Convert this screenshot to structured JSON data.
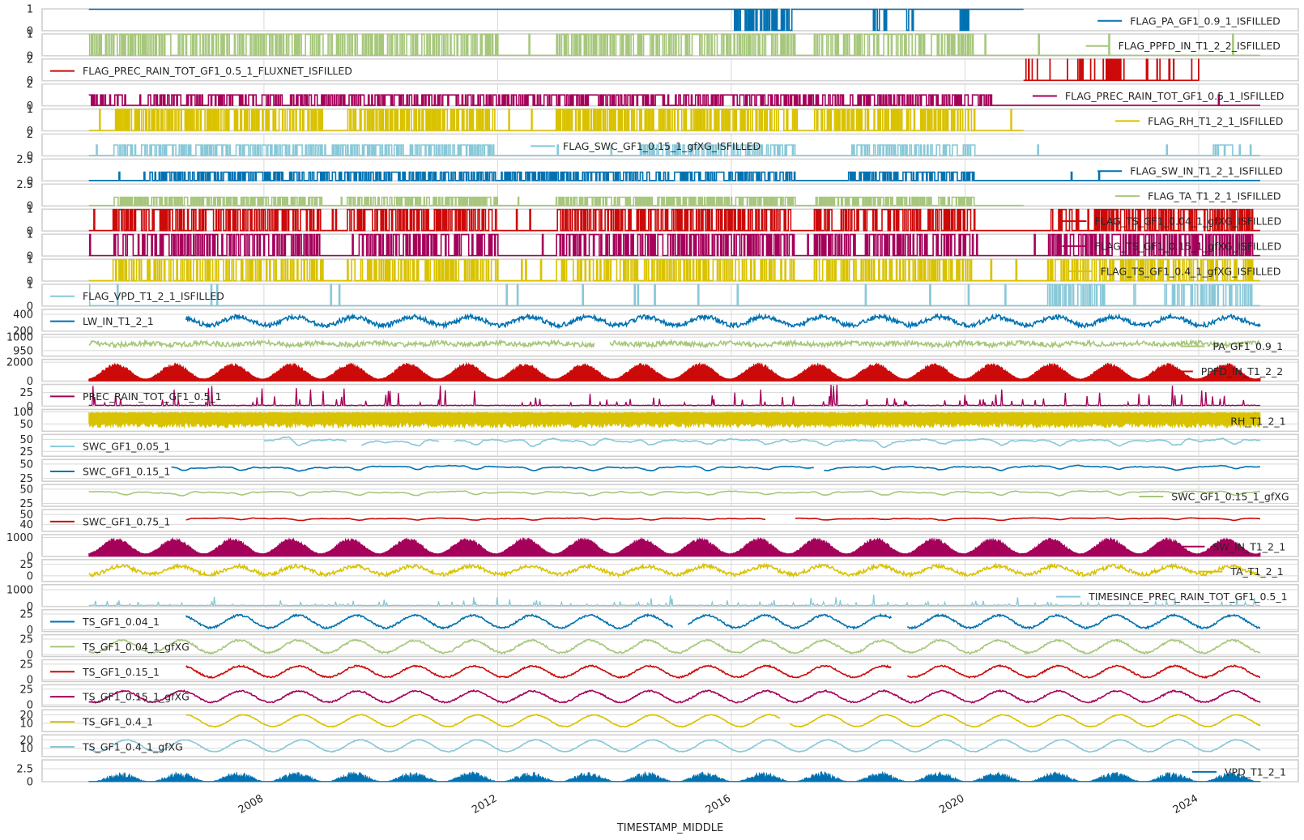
{
  "chart_data": {
    "type": "line",
    "xlabel": "TIMESTAMP_MIDDLE",
    "x_range": [
      "2005-01-01",
      "2025-01-20"
    ],
    "x_axis_limits": [
      "2004-03-15",
      "2025-09-15"
    ],
    "x_ticks": [
      "2008",
      "2012",
      "2016",
      "2020",
      "2024"
    ],
    "x_tick_values": [
      "2008-01-01",
      "2012-01-01",
      "2016-01-01",
      "2020-01-01",
      "2024-01-01"
    ],
    "grid": true,
    "sharex": true,
    "series": [
      {
        "name": "FLAG_PA_GF1_0.9_1_ISFILLED",
        "color": "#0072b2",
        "ylim": [
          0,
          1
        ],
        "yticks": [
          0,
          1
        ],
        "legend": "right",
        "pattern": "flag",
        "base": 1,
        "low": 0,
        "high": 1,
        "start": "2005-01-01",
        "end": "2021-01-01",
        "bursts": [
          [
            "2016-01-15",
            "2017-01-10"
          ],
          [
            "2018-06-01",
            "2018-09-01"
          ],
          [
            "2019-01-01",
            "2019-03-01"
          ],
          [
            "2019-12-01",
            "2020-02-01"
          ]
        ]
      },
      {
        "name": "FLAG_PPFD_IN_T1_2_2_ISFILLED",
        "color": "#a6c77c",
        "ylim": [
          0,
          1
        ],
        "yticks": [
          0,
          1
        ],
        "legend": "right",
        "pattern": "flag",
        "base": 0,
        "low": 0,
        "high": 1,
        "start": "2005-01-01",
        "end": "2025-01-20",
        "bursts": [
          [
            "2005-01-01",
            "2006-06-01"
          ],
          [
            "2006-07-01",
            "2009-01-01"
          ],
          [
            "2009-02-01",
            "2012-01-01"
          ],
          [
            "2013-01-01",
            "2017-02-01"
          ],
          [
            "2017-06-01",
            "2020-03-01"
          ]
        ]
      },
      {
        "name": "FLAG_PREC_RAIN_TOT_GF1_0.5_1_FLUXNET_ISFILLED",
        "color": "#cc0a0a",
        "ylim": [
          0,
          2
        ],
        "yticks": [
          0,
          2
        ],
        "legend": "left",
        "pattern": "flag",
        "base": 0,
        "low": 0,
        "high": 2,
        "start": "2021-01-01",
        "end": "2024-01-01",
        "bursts": [
          [
            "2021-12-15",
            "2022-01-10"
          ],
          [
            "2022-06-01",
            "2022-09-01"
          ]
        ]
      },
      {
        "name": "FLAG_PREC_RAIN_TOT_GF1_0.5_1_ISFILLED",
        "color": "#a5005a",
        "ylim": [
          0,
          2
        ],
        "yticks": [
          0,
          2
        ],
        "legend": "right",
        "pattern": "flag",
        "base": 0,
        "low": 0,
        "high": 1,
        "start": "2005-01-01",
        "end": "2025-01-20",
        "bursts": [
          [
            "2005-01-01",
            "2005-09-01"
          ],
          [
            "2006-01-01",
            "2010-06-01"
          ],
          [
            "2010-06-01",
            "2014-12-01"
          ],
          [
            "2015-01-01",
            "2017-12-01"
          ],
          [
            "2018-01-01",
            "2020-06-01"
          ]
        ]
      },
      {
        "name": "FLAG_RH_T1_2_1_ISFILLED",
        "color": "#d9c200",
        "ylim": [
          0,
          1
        ],
        "yticks": [
          0,
          1
        ],
        "legend": "right",
        "pattern": "flag",
        "base": 0,
        "low": 0,
        "high": 1,
        "start": "2005-01-01",
        "end": "2021-01-01",
        "bursts": [
          [
            "2005-06-01",
            "2009-01-01"
          ],
          [
            "2009-06-01",
            "2012-01-01"
          ],
          [
            "2013-01-01",
            "2017-02-01"
          ],
          [
            "2017-06-01",
            "2020-03-01"
          ]
        ]
      },
      {
        "name": "FLAG_SWC_GF1_0.15_1_gfXG_ISFILLED",
        "color": "#88c8d8",
        "ylim": [
          0,
          2
        ],
        "yticks": [
          0,
          2
        ],
        "legend": "center",
        "pattern": "flag",
        "base": 0,
        "low": 0,
        "high": 1,
        "start": "2005-01-01",
        "end": "2025-01-20",
        "bursts": [
          [
            "2005-06-01",
            "2010-01-01"
          ],
          [
            "2010-01-01",
            "2012-01-01"
          ],
          [
            "2014-06-01",
            "2017-02-01"
          ],
          [
            "2018-01-01",
            "2020-03-01"
          ],
          [
            "2024-04-01",
            "2024-08-01"
          ]
        ]
      },
      {
        "name": "FLAG_SW_IN_T1_2_1_ISFILLED",
        "color": "#0072b2",
        "ylim": [
          0,
          2.5
        ],
        "yticks": [
          0,
          2.5
        ],
        "legend": "right",
        "pattern": "flag",
        "base": 0,
        "low": 0,
        "high": 1,
        "start": "2005-01-01",
        "end": "2025-01-20",
        "bursts": [
          [
            "2006-01-01",
            "2010-06-01"
          ],
          [
            "2010-06-01",
            "2014-12-01"
          ],
          [
            "2015-01-01",
            "2017-02-01"
          ],
          [
            "2018-01-01",
            "2020-03-01"
          ]
        ]
      },
      {
        "name": "FLAG_TA_T1_2_1_ISFILLED",
        "color": "#a6c77c",
        "ylim": [
          0,
          2.5
        ],
        "yticks": [
          0,
          2.5
        ],
        "legend": "right",
        "pattern": "flag",
        "base": 0,
        "low": 0,
        "high": 1,
        "start": "2005-01-01",
        "end": "2021-01-01",
        "bursts": [
          [
            "2005-06-01",
            "2009-01-01"
          ],
          [
            "2009-06-01",
            "2012-01-01"
          ],
          [
            "2013-01-01",
            "2017-02-01"
          ],
          [
            "2017-06-01",
            "2020-03-01"
          ]
        ]
      },
      {
        "name": "FLAG_TS_GF1_0.04_1_gfXG_ISFILLED",
        "color": "#cc0a0a",
        "ylim": [
          0,
          1
        ],
        "yticks": [
          0,
          1
        ],
        "legend": "right",
        "pattern": "flag",
        "base": 0,
        "low": 0,
        "high": 1,
        "start": "2005-01-01",
        "end": "2025-01-20",
        "bursts": [
          [
            "2005-06-01",
            "2009-01-01"
          ],
          [
            "2009-06-01",
            "2012-01-01"
          ],
          [
            "2013-01-01",
            "2017-02-01"
          ],
          [
            "2017-06-01",
            "2020-03-01"
          ],
          [
            "2021-06-01",
            "2024-12-01"
          ]
        ]
      },
      {
        "name": "FLAG_TS_GF1_0.15_1_gfXG_ISFILLED",
        "color": "#a5005a",
        "ylim": [
          0,
          1
        ],
        "yticks": [
          0,
          1
        ],
        "legend": "right",
        "pattern": "flag",
        "base": 0,
        "low": 0,
        "high": 1,
        "start": "2005-01-01",
        "end": "2025-01-20",
        "bursts": [
          [
            "2005-06-01",
            "2009-01-01"
          ],
          [
            "2009-06-01",
            "2012-01-01"
          ],
          [
            "2013-01-01",
            "2017-02-01"
          ],
          [
            "2017-06-01",
            "2020-03-01"
          ],
          [
            "2021-06-01",
            "2024-12-01"
          ]
        ]
      },
      {
        "name": "FLAG_TS_GF1_0.4_1_gfXG_ISFILLED",
        "color": "#d9c200",
        "ylim": [
          0,
          1
        ],
        "yticks": [
          0,
          1
        ],
        "legend": "right",
        "pattern": "flag",
        "base": 0,
        "low": 0,
        "high": 1,
        "start": "2005-01-01",
        "end": "2025-01-20",
        "bursts": [
          [
            "2005-06-01",
            "2009-01-01"
          ],
          [
            "2009-06-01",
            "2012-01-01"
          ],
          [
            "2013-01-01",
            "2017-02-01"
          ],
          [
            "2017-06-01",
            "2020-03-01"
          ],
          [
            "2021-06-01",
            "2024-12-01"
          ]
        ]
      },
      {
        "name": "FLAG_VPD_T1_2_1_ISFILLED",
        "color": "#88c8d8",
        "ylim": [
          0,
          1
        ],
        "yticks": [
          0,
          1
        ],
        "legend": "left",
        "pattern": "flag",
        "base": 0,
        "low": 0,
        "high": 1,
        "start": "2005-01-01",
        "end": "2025-01-20",
        "bursts": [
          [
            "2021-06-01",
            "2022-06-01"
          ],
          [
            "2023-06-01",
            "2024-12-01"
          ]
        ]
      },
      {
        "name": "LW_IN_T1_2_1",
        "color": "#0072b2",
        "ylim": [
          200,
          460
        ],
        "yticks": [
          200,
          400
        ],
        "legend": "left",
        "pattern": "seasonal",
        "mean": 320,
        "amp": 50,
        "noise": 28,
        "start": "2006-09-01",
        "end": "2025-01-20",
        "peak": 0.55
      },
      {
        "name": "PA_GF1_0.9_1",
        "color": "#a6c77c",
        "ylim": [
          930,
          1010
        ],
        "yticks": [
          950,
          1000
        ],
        "legend": "right",
        "pattern": "noisy",
        "mean": 975,
        "amp": 3,
        "noise": 9,
        "start": "2005-01-01",
        "end": "2025-01-20",
        "gaps": [
          [
            "2013-09-01",
            "2013-12-01"
          ]
        ]
      },
      {
        "name": "PPFD_IN_T1_2_2",
        "color": "#cc0a0a",
        "ylim": [
          0,
          2300
        ],
        "yticks": [
          0,
          2000
        ],
        "legend": "right",
        "pattern": "fill",
        "mean": 1050,
        "amp": 800,
        "start": "2005-01-01",
        "end": "2025-01-20",
        "peak": 0.47
      },
      {
        "name": "PREC_RAIN_TOT_GF1_0.5_1",
        "color": "#a5005a",
        "ylim": [
          0,
          40
        ],
        "yticks": [
          0,
          25
        ],
        "legend": "left",
        "pattern": "spiky",
        "base": 1,
        "spike": 20,
        "start": "2005-01-01",
        "end": "2025-01-20"
      },
      {
        "name": "RH_T1_2_1",
        "color": "#d9c200",
        "ylim": [
          20,
          110
        ],
        "yticks": [
          50,
          100
        ],
        "legend": "right",
        "pattern": "band",
        "lo": 40,
        "hi": 98,
        "start": "2005-01-01",
        "end": "2025-01-20"
      },
      {
        "name": "SWC_GF1_0.05_1",
        "color": "#88c8d8",
        "ylim": [
          15,
          60
        ],
        "yticks": [
          25,
          50
        ],
        "legend": "left",
        "pattern": "soil",
        "mean": 48,
        "amp": 10,
        "start": "2008-01-01",
        "end": "2025-01-20",
        "gaps": [
          [
            "2009-06-01",
            "2009-09-01"
          ],
          [
            "2011-01-01",
            "2011-04-01"
          ]
        ]
      },
      {
        "name": "SWC_GF1_0.15_1",
        "color": "#0072b2",
        "ylim": [
          20,
          58
        ],
        "yticks": [
          25,
          50
        ],
        "legend": "left",
        "pattern": "soil",
        "mean": 45,
        "amp": 5,
        "start": "2006-06-01",
        "end": "2025-01-20",
        "gaps": [
          [
            "2017-06-01",
            "2017-08-01"
          ]
        ]
      },
      {
        "name": "SWC_GF1_0.15_1_gfXG",
        "color": "#a6c77c",
        "ylim": [
          20,
          58
        ],
        "yticks": [
          25,
          50
        ],
        "legend": "right",
        "pattern": "soil",
        "mean": 45,
        "amp": 5,
        "start": "2005-01-01",
        "end": "2025-01-20"
      },
      {
        "name": "SWC_GF1_0.75_1",
        "color": "#cc0a0a",
        "ylim": [
          33,
          55
        ],
        "yticks": [
          40,
          50
        ],
        "legend": "left",
        "pattern": "soil",
        "mean": 46,
        "amp": 1.5,
        "start": "2006-09-01",
        "end": "2025-01-20",
        "gaps": [
          [
            "2016-08-01",
            "2017-02-01"
          ]
        ]
      },
      {
        "name": "SW_IN_T1_2_1",
        "color": "#a5005a",
        "ylim": [
          0,
          1150
        ],
        "yticks": [
          0,
          1000
        ],
        "legend": "right",
        "pattern": "fill",
        "mean": 550,
        "amp": 400,
        "start": "2005-01-01",
        "end": "2025-01-20",
        "peak": 0.47
      },
      {
        "name": "TA_T1_2_1",
        "color": "#d9c200",
        "ylim": [
          -12,
          35
        ],
        "yticks": [
          0,
          25
        ],
        "legend": "right",
        "pattern": "seasonal",
        "mean": 12,
        "amp": 9,
        "noise": 4,
        "start": "2005-01-01",
        "end": "2025-01-20",
        "peak": 0.55
      },
      {
        "name": "TIMESINCE_PREC_RAIN_TOT_GF1_0.5_1",
        "color": "#88c8d8",
        "ylim": [
          0,
          1300
        ],
        "yticks": [
          0,
          1000
        ],
        "legend": "right",
        "pattern": "spiky",
        "base": 40,
        "spike": 300,
        "start": "2005-01-01",
        "end": "2025-01-20"
      },
      {
        "name": "TS_GF1_0.04_1",
        "color": "#0072b2",
        "ylim": [
          -3,
          32
        ],
        "yticks": [
          0,
          25
        ],
        "legend": "left",
        "pattern": "seasonal",
        "mean": 13,
        "amp": 10,
        "noise": 1.5,
        "start": "2006-09-01",
        "end": "2025-01-20",
        "peak": 0.58,
        "gaps": [
          [
            "2015-01-01",
            "2015-04-01"
          ],
          [
            "2018-10-01",
            "2019-01-01"
          ]
        ]
      },
      {
        "name": "TS_GF1_0.04_1_gfXG",
        "color": "#a6c77c",
        "ylim": [
          -3,
          32
        ],
        "yticks": [
          0,
          25
        ],
        "legend": "left",
        "pattern": "seasonal",
        "mean": 13,
        "amp": 10,
        "noise": 1.5,
        "start": "2005-01-01",
        "end": "2025-01-20",
        "peak": 0.58
      },
      {
        "name": "TS_GF1_0.15_1",
        "color": "#cc0a0a",
        "ylim": [
          -3,
          32
        ],
        "yticks": [
          0,
          25
        ],
        "legend": "left",
        "pattern": "seasonal",
        "mean": 13,
        "amp": 9,
        "noise": 1.2,
        "start": "2006-09-01",
        "end": "2025-01-20",
        "peak": 0.6,
        "gaps": [
          [
            "2018-10-01",
            "2019-01-01"
          ]
        ]
      },
      {
        "name": "TS_GF1_0.15_1_gfXG",
        "color": "#a5005a",
        "ylim": [
          -3,
          32
        ],
        "yticks": [
          0,
          25
        ],
        "legend": "left",
        "pattern": "seasonal",
        "mean": 13,
        "amp": 9,
        "noise": 1.2,
        "start": "2005-01-01",
        "end": "2025-01-20",
        "peak": 0.6
      },
      {
        "name": "TS_GF1_0.4_1",
        "color": "#d9c200",
        "ylim": [
          0,
          26
        ],
        "yticks": [
          10,
          20
        ],
        "legend": "left",
        "pattern": "seasonal",
        "mean": 13,
        "amp": 7,
        "noise": 0.5,
        "start": "2006-09-01",
        "end": "2025-01-20",
        "peak": 0.65,
        "gaps": [
          [
            "2016-11-01",
            "2017-01-01"
          ]
        ]
      },
      {
        "name": "TS_GF1_0.4_1_gfXG",
        "color": "#88c8d8",
        "ylim": [
          0,
          26
        ],
        "yticks": [
          10,
          20
        ],
        "legend": "left",
        "pattern": "seasonal",
        "mean": 13,
        "amp": 7,
        "noise": 0.5,
        "start": "2005-01-01",
        "end": "2025-01-20",
        "peak": 0.65
      },
      {
        "name": "VPD_T1_2_1",
        "color": "#0072b2",
        "ylim": [
          0,
          4.2
        ],
        "yticks": [
          0,
          2.5
        ],
        "legend": "right",
        "pattern": "fill",
        "mean": 0.7,
        "amp": 0.7,
        "start": "2005-01-01",
        "end": "2025-01-20",
        "peak": 0.55,
        "spiky": true
      }
    ]
  }
}
